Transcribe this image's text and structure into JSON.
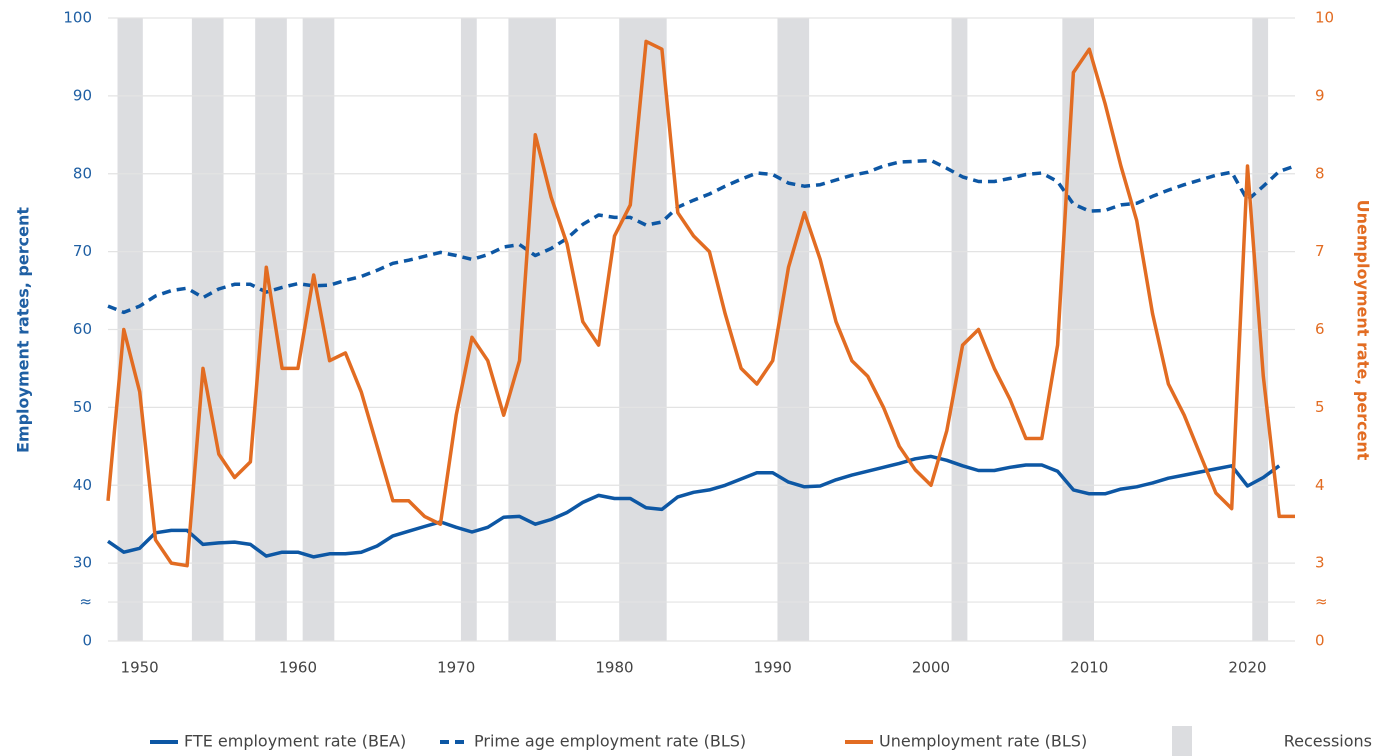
{
  "chart_data": {
    "type": "line",
    "y_axis_label": "Employment rates, percent",
    "y2_axis_label": "Unemployment rate, percent",
    "x": [
      1948,
      1949,
      1950,
      1951,
      1952,
      1953,
      1954,
      1955,
      1956,
      1957,
      1958,
      1959,
      1960,
      1961,
      1962,
      1963,
      1964,
      1965,
      1966,
      1967,
      1968,
      1969,
      1970,
      1971,
      1972,
      1973,
      1974,
      1975,
      1976,
      1977,
      1978,
      1979,
      1980,
      1981,
      1982,
      1983,
      1984,
      1985,
      1986,
      1987,
      1988,
      1989,
      1990,
      1991,
      1992,
      1993,
      1994,
      1995,
      1996,
      1997,
      1998,
      1999,
      2000,
      2001,
      2002,
      2003,
      2004,
      2005,
      2006,
      2007,
      2008,
      2009,
      2010,
      2011,
      2012,
      2013,
      2014,
      2015,
      2016,
      2017,
      2018,
      2019,
      2020,
      2021,
      2022,
      2023
    ],
    "xlim": [
      1948,
      2023
    ],
    "xticks": [
      1950,
      1960,
      1970,
      1980,
      1990,
      2000,
      2010,
      2020
    ],
    "ylim": [
      0,
      100
    ],
    "yticks": [
      0,
      30,
      40,
      50,
      60,
      70,
      80,
      90,
      100
    ],
    "ybreak": {
      "from": 0,
      "to": 30,
      "label": "≈"
    },
    "y2lim": [
      0,
      10
    ],
    "y2ticks": [
      0,
      3,
      4,
      5,
      6,
      7,
      8,
      9,
      10
    ],
    "y2break": {
      "from": 0,
      "to": 3,
      "label": "≈"
    },
    "grid": true,
    "series": [
      {
        "name": "FTE employment rate (BEA)",
        "color": "#0d57a4",
        "dash": "solid",
        "axis": "y",
        "values": [
          32.8,
          31.4,
          31.9,
          33.9,
          34.2,
          34.2,
          32.4,
          32.6,
          32.7,
          32.4,
          30.9,
          31.4,
          31.4,
          30.8,
          31.2,
          31.2,
          31.4,
          32.2,
          33.5,
          34.1,
          34.7,
          35.3,
          34.6,
          34.0,
          34.6,
          35.9,
          36.0,
          35.0,
          35.6,
          36.5,
          37.8,
          38.7,
          38.3,
          38.3,
          37.1,
          36.9,
          38.5,
          39.1,
          39.4,
          40.0,
          40.8,
          41.6,
          41.6,
          40.4,
          39.8,
          39.9,
          40.7,
          41.3,
          41.8,
          42.3,
          42.8,
          43.4,
          43.7,
          43.2,
          42.5,
          41.9,
          41.9,
          42.3,
          42.6,
          42.6,
          41.8,
          39.4,
          38.9,
          38.9,
          39.5,
          39.8,
          40.3,
          40.9,
          41.3,
          41.7,
          42.1,
          42.5,
          39.9,
          41.0,
          42.5,
          null
        ]
      },
      {
        "name": "Prime age employment rate (BLS)",
        "color": "#0d57a4",
        "dash": "dashed",
        "axis": "y",
        "values": [
          63.0,
          62.2,
          63.0,
          64.3,
          65.0,
          65.3,
          64.1,
          65.2,
          65.8,
          65.8,
          64.8,
          65.4,
          65.9,
          65.6,
          65.7,
          66.3,
          66.8,
          67.6,
          68.5,
          68.9,
          69.4,
          69.9,
          69.5,
          69.0,
          69.6,
          70.6,
          70.9,
          69.5,
          70.4,
          71.7,
          73.5,
          74.7,
          74.4,
          74.4,
          73.4,
          73.8,
          75.7,
          76.6,
          77.4,
          78.4,
          79.3,
          80.1,
          79.9,
          78.8,
          78.4,
          78.6,
          79.2,
          79.8,
          80.2,
          81.0,
          81.5,
          81.6,
          81.7,
          80.7,
          79.6,
          79.0,
          79.0,
          79.4,
          79.9,
          80.1,
          79.0,
          76.1,
          75.2,
          75.3,
          76.0,
          76.2,
          77.1,
          77.9,
          78.6,
          79.2,
          79.8,
          80.2,
          76.6,
          78.4,
          80.3,
          81.0
        ]
      },
      {
        "name": "Unemployment rate (BLS)",
        "color": "#e26c22",
        "dash": "solid",
        "axis": "y2",
        "values": [
          3.8,
          6.0,
          5.2,
          3.3,
          3.0,
          2.9,
          5.5,
          4.4,
          4.1,
          4.3,
          6.8,
          5.5,
          5.5,
          6.7,
          5.6,
          5.7,
          5.2,
          4.5,
          3.8,
          3.8,
          3.6,
          3.5,
          4.9,
          5.9,
          5.6,
          4.9,
          5.6,
          8.5,
          7.7,
          7.1,
          6.1,
          5.8,
          7.2,
          7.6,
          9.7,
          9.6,
          7.5,
          7.2,
          7.0,
          6.2,
          5.5,
          5.3,
          5.6,
          6.8,
          7.5,
          6.9,
          6.1,
          5.6,
          5.4,
          5.0,
          4.5,
          4.2,
          4.0,
          4.7,
          5.8,
          6.0,
          5.5,
          5.1,
          4.6,
          4.6,
          5.8,
          9.3,
          9.6,
          8.9,
          8.1,
          7.4,
          6.2,
          5.3,
          4.9,
          4.4,
          3.9,
          3.7,
          8.1,
          5.4,
          3.6,
          3.6
        ]
      }
    ],
    "recessions": {
      "name": "Recessions",
      "color": "#dcdde0",
      "spans": [
        [
          1948.6,
          1950.2
        ],
        [
          1953.3,
          1955.3
        ],
        [
          1957.3,
          1959.3
        ],
        [
          1960.3,
          1962.3
        ],
        [
          1970.3,
          1971.3
        ],
        [
          1973.3,
          1976.3
        ],
        [
          1980.3,
          1983.3
        ],
        [
          1990.3,
          1992.3
        ],
        [
          2001.3,
          2002.3
        ],
        [
          2008.3,
          2010.3
        ],
        [
          2020.3,
          2021.3
        ]
      ]
    }
  }
}
